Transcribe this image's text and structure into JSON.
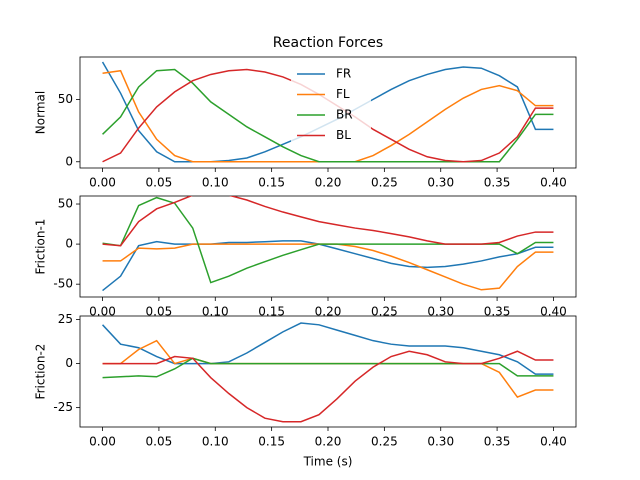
{
  "chart_data": [
    {
      "type": "line",
      "title": "Reaction Forces",
      "ylabel": "Normal",
      "x": [
        0,
        0.016,
        0.032,
        0.048,
        0.064,
        0.08,
        0.096,
        0.112,
        0.128,
        0.144,
        0.16,
        0.176,
        0.192,
        0.208,
        0.224,
        0.24,
        0.256,
        0.272,
        0.288,
        0.304,
        0.32,
        0.336,
        0.352,
        0.368,
        0.384,
        0.4
      ],
      "xlim": [
        -0.02,
        0.42
      ],
      "xticks": [
        {
          "value": 0,
          "label": "0.00"
        },
        {
          "value": 0.05,
          "label": "0.05"
        },
        {
          "value": 0.1,
          "label": "0.10"
        },
        {
          "value": 0.15,
          "label": "0.15"
        },
        {
          "value": 0.2,
          "label": "0.20"
        },
        {
          "value": 0.25,
          "label": "0.25"
        },
        {
          "value": 0.3,
          "label": "0.30"
        },
        {
          "value": 0.35,
          "label": "0.35"
        },
        {
          "value": 0.4,
          "label": "0.40"
        }
      ],
      "ylim": [
        -5,
        84
      ],
      "yticks": [
        0,
        50
      ],
      "legend": "upper center",
      "series": [
        {
          "name": "FR",
          "color": "#1f77b4",
          "values": [
            80,
            55,
            25,
            8,
            0,
            0,
            0,
            1,
            3,
            8,
            14,
            20,
            27,
            34,
            42,
            50,
            58,
            65,
            70,
            74,
            76,
            75,
            69,
            60,
            26,
            26
          ]
        },
        {
          "name": "FL",
          "color": "#ff7f0e",
          "values": [
            71,
            73,
            40,
            18,
            5,
            0,
            0,
            0,
            0,
            0,
            0,
            0,
            0,
            0,
            0,
            5,
            13,
            22,
            32,
            42,
            51,
            58,
            61,
            57,
            45,
            45
          ]
        },
        {
          "name": "BR",
          "color": "#2ca02c",
          "values": [
            22,
            36,
            60,
            73,
            74,
            63,
            48,
            38,
            28,
            20,
            12,
            5,
            0,
            0,
            0,
            0,
            0,
            0,
            0,
            0,
            0,
            0,
            0,
            18,
            38,
            38
          ]
        },
        {
          "name": "BL",
          "color": "#d62728",
          "values": [
            0,
            7,
            27,
            44,
            56,
            65,
            70,
            73,
            74,
            72,
            68,
            62,
            54,
            45,
            36,
            26,
            18,
            10,
            4,
            1,
            0,
            1,
            7,
            20,
            43,
            43
          ]
        }
      ]
    },
    {
      "type": "line",
      "ylabel": "Friction-1",
      "x": [
        0,
        0.016,
        0.032,
        0.048,
        0.064,
        0.08,
        0.096,
        0.112,
        0.128,
        0.144,
        0.16,
        0.176,
        0.192,
        0.208,
        0.224,
        0.24,
        0.256,
        0.272,
        0.288,
        0.304,
        0.32,
        0.336,
        0.352,
        0.368,
        0.384,
        0.4
      ],
      "xlim": [
        -0.02,
        0.42
      ],
      "xticks": [
        {
          "value": 0,
          "label": "0.00"
        },
        {
          "value": 0.05,
          "label": "0.05"
        },
        {
          "value": 0.1,
          "label": "0.10"
        },
        {
          "value": 0.15,
          "label": "0.15"
        },
        {
          "value": 0.2,
          "label": "0.20"
        },
        {
          "value": 0.25,
          "label": "0.25"
        },
        {
          "value": 0.3,
          "label": "0.30"
        },
        {
          "value": 0.35,
          "label": "0.35"
        },
        {
          "value": 0.4,
          "label": "0.40"
        }
      ],
      "ylim": [
        -66,
        60
      ],
      "yticks": [
        -50,
        0,
        50
      ],
      "series": [
        {
          "color": "#1f77b4",
          "values": [
            -58,
            -40,
            -2,
            3,
            0,
            0,
            0,
            2,
            2,
            3,
            4,
            4,
            0,
            -6,
            -12,
            -18,
            -24,
            -28,
            -29,
            -28,
            -25,
            -21,
            -16,
            -12,
            -4,
            -4
          ]
        },
        {
          "color": "#ff7f0e",
          "values": [
            -21,
            -21,
            -5,
            -6,
            -5,
            0,
            0,
            0,
            0,
            0,
            0,
            0,
            0,
            0,
            -3,
            -8,
            -15,
            -23,
            -32,
            -41,
            -50,
            -57,
            -55,
            -28,
            -10,
            -10
          ]
        },
        {
          "color": "#2ca02c",
          "values": [
            1,
            -2,
            48,
            58,
            51,
            20,
            -48,
            -40,
            -30,
            -22,
            -14,
            -7,
            0,
            0,
            0,
            0,
            0,
            0,
            0,
            0,
            0,
            0,
            0,
            -12,
            2,
            2
          ]
        },
        {
          "color": "#d62728",
          "values": [
            0,
            -2,
            28,
            44,
            52,
            61,
            64,
            61,
            55,
            47,
            40,
            34,
            28,
            24,
            20,
            17,
            13,
            9,
            4,
            0,
            0,
            0,
            2,
            10,
            15,
            15
          ]
        }
      ]
    },
    {
      "type": "line",
      "ylabel": "Friction-2",
      "xlabel": "Time (s)",
      "x": [
        0,
        0.016,
        0.032,
        0.048,
        0.064,
        0.08,
        0.096,
        0.112,
        0.128,
        0.144,
        0.16,
        0.176,
        0.192,
        0.208,
        0.224,
        0.24,
        0.256,
        0.272,
        0.288,
        0.304,
        0.32,
        0.336,
        0.352,
        0.368,
        0.384,
        0.4
      ],
      "xlim": [
        -0.02,
        0.42
      ],
      "xticks": [
        {
          "value": 0,
          "label": "0.00"
        },
        {
          "value": 0.05,
          "label": "0.05"
        },
        {
          "value": 0.1,
          "label": "0.10"
        },
        {
          "value": 0.15,
          "label": "0.15"
        },
        {
          "value": 0.2,
          "label": "0.20"
        },
        {
          "value": 0.25,
          "label": "0.25"
        },
        {
          "value": 0.3,
          "label": "0.30"
        },
        {
          "value": 0.35,
          "label": "0.35"
        },
        {
          "value": 0.4,
          "label": "0.40"
        }
      ],
      "ylim": [
        -36,
        27
      ],
      "yticks": [
        -25,
        0,
        25
      ],
      "series": [
        {
          "color": "#1f77b4",
          "values": [
            22,
            11,
            9,
            4,
            0,
            0,
            0,
            1,
            6,
            12,
            18,
            23,
            22,
            19,
            16,
            13,
            11,
            10,
            10,
            10,
            9,
            7,
            5,
            1,
            -6,
            -6
          ]
        },
        {
          "color": "#ff7f0e",
          "values": [
            0,
            0,
            8,
            13,
            0,
            3,
            0,
            0,
            0,
            0,
            0,
            0,
            0,
            0,
            0,
            0,
            0,
            0,
            0,
            0,
            0,
            0,
            -5,
            -19,
            -15,
            -15
          ]
        },
        {
          "color": "#2ca02c",
          "values": [
            -8,
            -7.5,
            -7,
            -7.5,
            -3,
            3,
            0,
            0,
            0,
            0,
            0,
            0,
            0,
            0,
            0,
            0,
            0,
            0,
            0,
            0,
            0,
            0,
            0,
            -7,
            -7,
            -7
          ]
        },
        {
          "color": "#d62728",
          "values": [
            0,
            0,
            0,
            0,
            4,
            3,
            -8,
            -17,
            -25,
            -31,
            -33,
            -33,
            -29,
            -20,
            -10,
            -2,
            4,
            7,
            5,
            1,
            0,
            0,
            3,
            7,
            2,
            2
          ]
        }
      ]
    }
  ]
}
